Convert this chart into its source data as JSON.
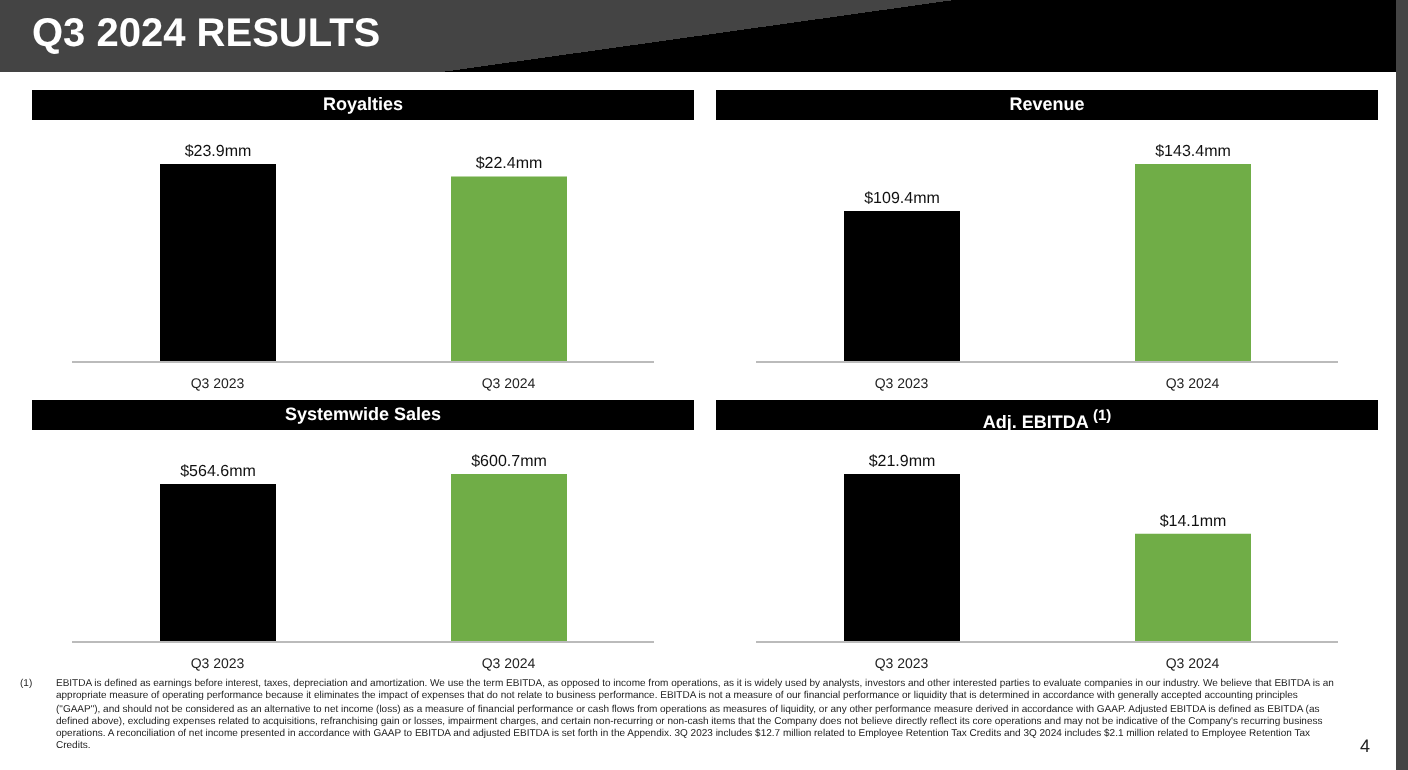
{
  "chart_data": [
    {
      "type": "bar",
      "title": "Royalties",
      "categories": [
        "Q3 2023",
        "Q3 2024"
      ],
      "values": [
        23.9,
        22.4
      ],
      "colors": [
        "#000000",
        "#70ad47"
      ],
      "value_labels": [
        "$23.9mm",
        "$22.4mm"
      ],
      "annotations": [
        "Q3 2024 RESULTS"
      ]
    },
    {
      "type": "bar",
      "title": "Revenue",
      "categories": [
        "Q3 2023",
        "Q3 2024"
      ],
      "values": [
        109.4,
        143.4
      ],
      "colors": [
        "#000000",
        "#70ad47"
      ],
      "value_labels": [
        "$109.4mm",
        "$143.4mm"
      ]
    },
    {
      "type": "bar",
      "title": "Systemwide Sales",
      "categories": [
        "Q3 2023",
        "Q3 2024"
      ],
      "values": [
        564.6,
        600.7
      ],
      "colors": [
        "#000000",
        "#70ad47"
      ],
      "value_labels": [
        "$564.6mm",
        "$600.7mm"
      ]
    },
    {
      "type": "bar",
      "title": "Adj. EBITDA $^{(1)}$",
      "categories": [
        "Q3 2023",
        "Q3 2024"
      ],
      "values": [
        21.9,
        14.1
      ],
      "colors": [
        "#000000",
        "#70ad47"
      ],
      "value_labels": [
        "$21.9mm",
        "$14.1mm"
      ],
      "annotations": [
        "(1)",
        "EBITDA is defined as earnings before interest, taxes, depreciation and amortization. We use the term EBITDA, as opposed to income from operations, as it is widely used by analysts, investors and other interested parties to evaluate companies in our industry. We believe that EBITDA is an appropriate measure of operating performance because it eliminates the impact of expenses that do not relate to business performance. EBITDA is not a measure of our financial performance or liquidity that is determined in accordance with generally accepted accounting principles (\"GAAP\"), and should not be considered as an alternative to net income (loss) as a measure of financial performance or cash flows from operations as measures of liquidity, or any other performance measure derived in accordance with GAAP. Adjusted EBITDA is defined as EBITDA (as defined above), excluding expenses related to acquisitions, refranchising gain or losses, impairment charges, and certain non-recurring or non-cash items that the Company does not believe directly reflect its core operations and may not be indicative of the Company's recurring business operations. A reconciliation of net income presented in accordance with GAAP to EBITDA and adjusted EBITDA is set forth in the Appendix. 3Q 2023 includes $12.7 million related to Employee Retention Tax Credits and 3Q 2024 includes $2.1 million related to Employee Retention Tax Credits.",
        "4"
      ]
    }
  ]
}
